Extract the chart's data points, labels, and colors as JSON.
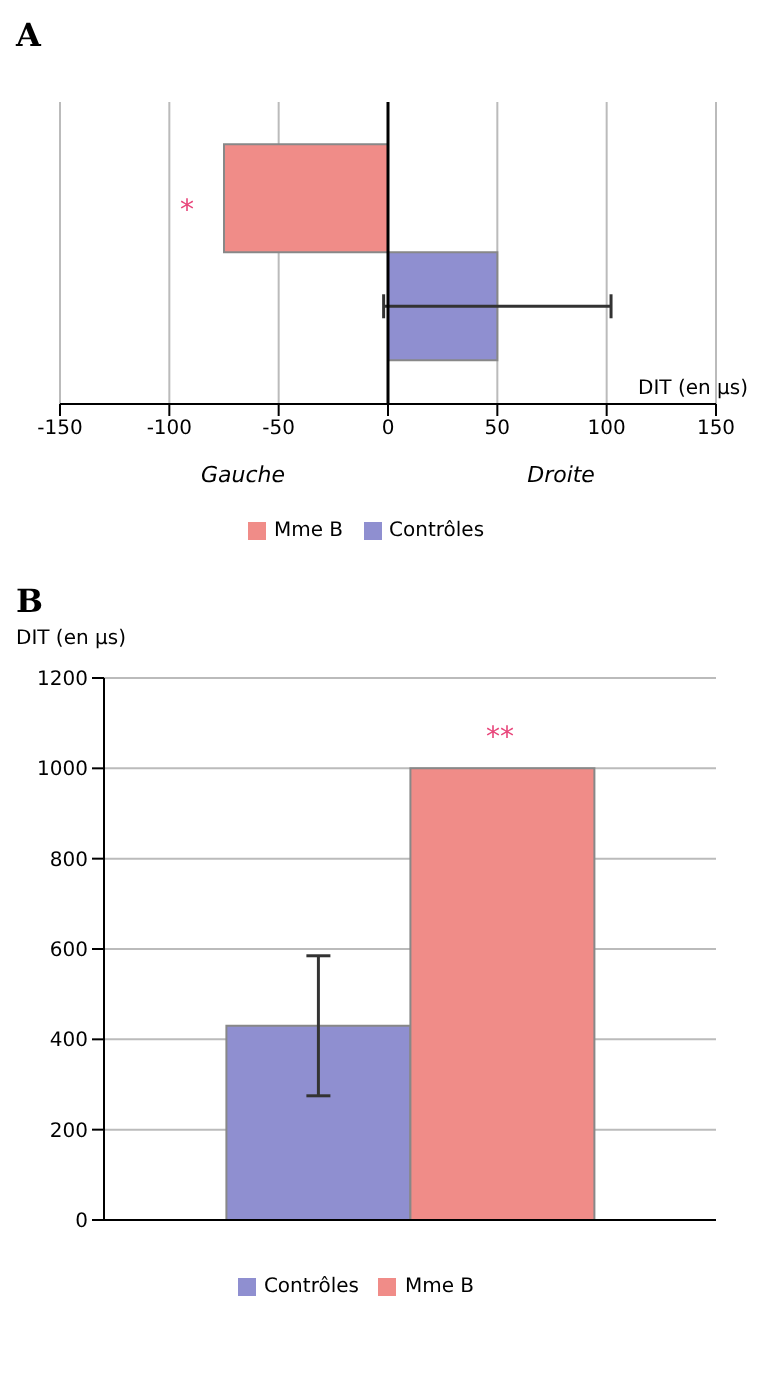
{
  "chart_data": [
    {
      "type": "bar",
      "title": "A",
      "orientation": "horizontal",
      "categories": [
        null
      ],
      "xlabel": "DIT (en µs)",
      "xlim": [
        -150,
        150
      ],
      "xticks": [
        -150,
        -100,
        -50,
        0,
        50,
        100,
        150
      ],
      "grid": "x",
      "legend": "bottom",
      "ref_lines": [
        {
          "axis": "x",
          "value": 0,
          "color": "#000000"
        }
      ],
      "series": [
        {
          "name": "Mme B",
          "color": "#f08c88",
          "values": [
            -75
          ]
        },
        {
          "name": "Contrôles",
          "color": "#8f8fd0",
          "values": [
            50
          ],
          "errors": [
            52
          ]
        }
      ],
      "annotations": [
        {
          "text": "*",
          "x": -75
        },
        "Gauche",
        "Droite"
      ]
    },
    {
      "type": "bar",
      "title": "B",
      "categories": [
        null
      ],
      "ylabel": "DIT (en µs)",
      "ylim": [
        0,
        1200
      ],
      "yticks": [
        0,
        200,
        400,
        600,
        800,
        1000,
        1200
      ],
      "grid": "y",
      "legend": "bottom",
      "series": [
        {
          "name": "Contrôles",
          "color": "#8f8fd0",
          "values": [
            430
          ],
          "errors": [
            155
          ]
        },
        {
          "name": "Mme B",
          "color": "#f08c88",
          "values": [
            1000
          ]
        }
      ],
      "annotations": [
        {
          "text": "**",
          "y": 1000
        }
      ]
    }
  ]
}
